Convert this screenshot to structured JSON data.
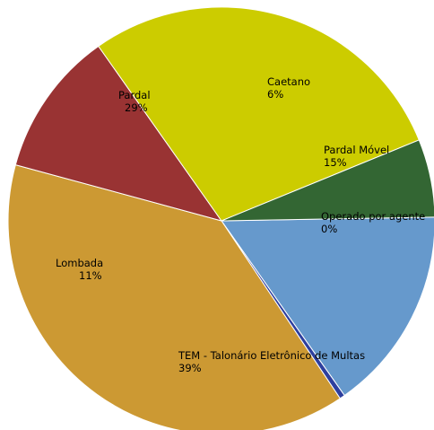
{
  "chart_data": {
    "type": "pie",
    "title": "",
    "slices": [
      {
        "label": "Pardal Móvel",
        "percent_label": "15%",
        "value": 15.5,
        "color": "#6699cc"
      },
      {
        "label": "Operado por agente",
        "percent_label": "0%",
        "value": 0.4,
        "color": "#2e3f9e"
      },
      {
        "label": "TEM - Talonário Eletrônico de Multas",
        "percent_label": "39%",
        "value": 38.6,
        "color": "#cc9933"
      },
      {
        "label": "Lombada",
        "percent_label": "11%",
        "value": 11.0,
        "color": "#993333"
      },
      {
        "label": "Pardal",
        "percent_label": "29%",
        "value": 28.6,
        "color": "#cccc00"
      },
      {
        "label": "Caetano",
        "percent_label": "6%",
        "value": 5.9,
        "color": "#336633"
      }
    ]
  }
}
